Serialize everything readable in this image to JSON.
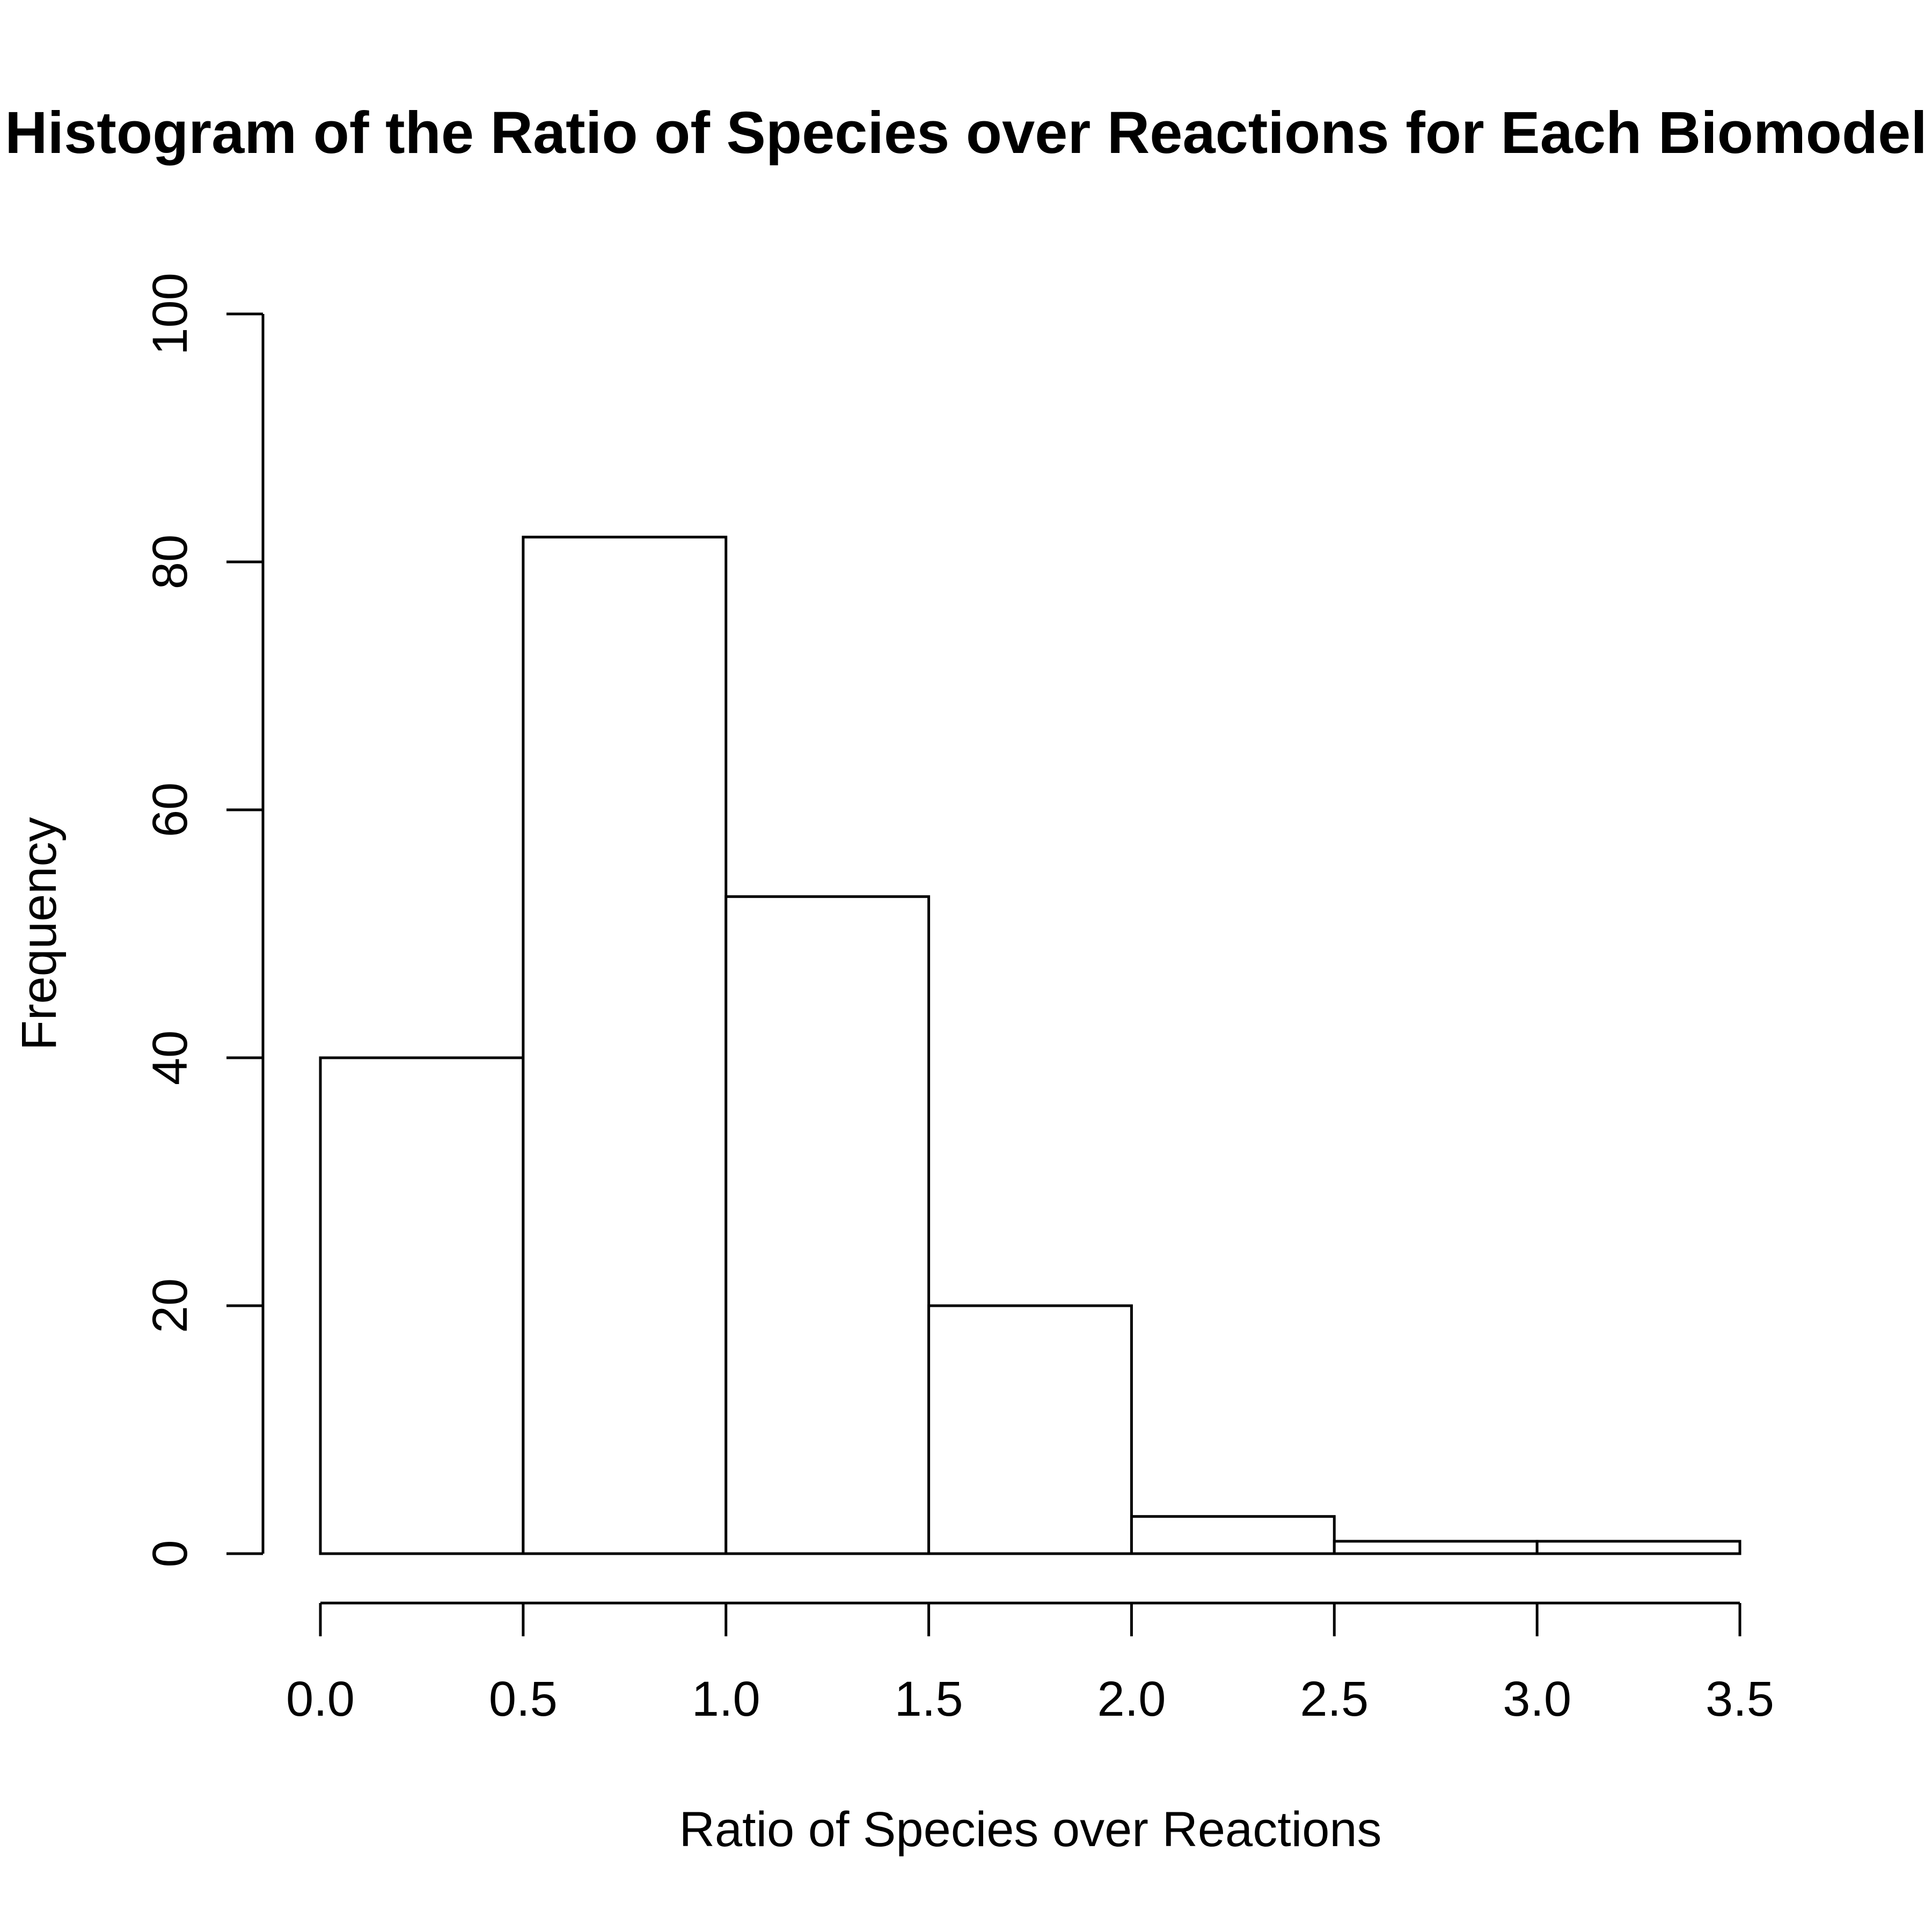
{
  "chart_data": {
    "type": "bar",
    "title": "Histogram of the Ratio of Species over Reactions for Each Biomodel",
    "xlabel": "Ratio of Species over Reactions",
    "ylabel": "Frequency",
    "bins": [
      {
        "x0": 0.0,
        "x1": 0.5,
        "value": 40
      },
      {
        "x0": 0.5,
        "x1": 1.0,
        "value": 82
      },
      {
        "x0": 1.0,
        "x1": 1.5,
        "value": 53
      },
      {
        "x0": 1.5,
        "x1": 2.0,
        "value": 20
      },
      {
        "x0": 2.0,
        "x1": 2.5,
        "value": 3
      },
      {
        "x0": 2.5,
        "x1": 3.0,
        "value": 1
      },
      {
        "x0": 3.0,
        "x1": 3.5,
        "value": 1
      }
    ],
    "xlim": [
      0.0,
      3.5
    ],
    "ylim": [
      0,
      100
    ],
    "x_ticks": [
      "0.0",
      "0.5",
      "1.0",
      "1.5",
      "2.0",
      "2.5",
      "3.0",
      "3.5"
    ],
    "y_ticks": [
      "0",
      "20",
      "40",
      "60",
      "80",
      "100"
    ],
    "grid": false,
    "bar_fill": "#ffffff",
    "bar_stroke": "#000000"
  }
}
